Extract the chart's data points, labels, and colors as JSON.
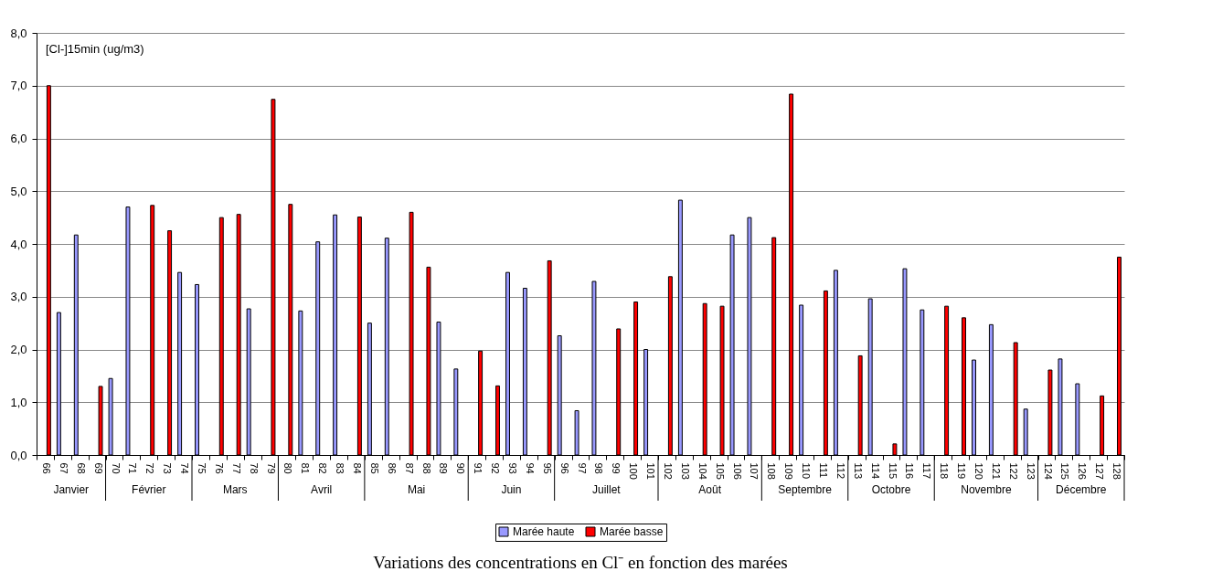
{
  "chart_data": {
    "type": "bar",
    "title": "Variations des concentrations en Cl⁻ en fonction des marées",
    "ylabel": "[Cl-]15min (ug/m3)",
    "categories": [
      "66",
      "67",
      "68",
      "69",
      "70",
      "71",
      "72",
      "73",
      "74",
      "75",
      "76",
      "77",
      "78",
      "79",
      "80",
      "81",
      "82",
      "83",
      "84",
      "85",
      "86",
      "87",
      "88",
      "89",
      "90",
      "91",
      "92",
      "93",
      "94",
      "95",
      "96",
      "97",
      "98",
      "99",
      "100",
      "101",
      "102",
      "103",
      "104",
      "105",
      "106",
      "107",
      "108",
      "109",
      "110",
      "111",
      "112",
      "113",
      "114",
      "115",
      "116",
      "117",
      "118",
      "119",
      "120",
      "121",
      "122",
      "123",
      "124",
      "125",
      "126",
      "127",
      "128"
    ],
    "series": [
      {
        "name": "Marée haute",
        "color": "#9999ff",
        "values": [
          null,
          2.7,
          4.17,
          null,
          1.45,
          4.7,
          null,
          null,
          3.46,
          3.23,
          null,
          null,
          2.77,
          null,
          null,
          2.73,
          4.04,
          4.55,
          null,
          2.5,
          4.11,
          null,
          null,
          2.52,
          1.63,
          null,
          null,
          3.46,
          3.16,
          null,
          2.26,
          0.84,
          3.29,
          null,
          null,
          2.0,
          null,
          4.83,
          null,
          null,
          4.17,
          4.5,
          null,
          null,
          2.84,
          null,
          3.5,
          null,
          2.96,
          null,
          3.53,
          2.75,
          null,
          null,
          1.8,
          2.47,
          null,
          0.87,
          null,
          1.82,
          1.35,
          null,
          null
        ]
      },
      {
        "name": "Marée basse",
        "color": "#ff0000",
        "values": [
          7.0,
          null,
          null,
          1.3,
          null,
          null,
          4.73,
          4.25,
          null,
          null,
          4.5,
          4.56,
          null,
          6.74,
          4.75,
          null,
          null,
          null,
          4.51,
          null,
          null,
          4.6,
          3.56,
          null,
          null,
          1.97,
          1.31,
          null,
          null,
          3.68,
          null,
          null,
          null,
          2.39,
          2.9,
          null,
          3.38,
          null,
          2.87,
          2.82,
          null,
          null,
          4.12,
          6.84,
          null,
          3.11,
          null,
          1.88,
          null,
          0.21,
          null,
          null,
          2.82,
          2.6,
          null,
          null,
          2.13,
          null,
          1.61,
          null,
          null,
          1.12,
          3.75
        ]
      }
    ],
    "ylim": [
      0,
      8
    ],
    "yticks": [
      {
        "value": 0,
        "label": "0,0"
      },
      {
        "value": 1,
        "label": "1,0"
      },
      {
        "value": 2,
        "label": "2,0"
      },
      {
        "value": 3,
        "label": "3,0"
      },
      {
        "value": 4,
        "label": "4,0"
      },
      {
        "value": 5,
        "label": "5,0"
      },
      {
        "value": 6,
        "label": "6,0"
      },
      {
        "value": 7,
        "label": "7,0"
      },
      {
        "value": 8,
        "label": "8,0"
      }
    ],
    "grid": "y",
    "legend": "bottom",
    "annotations": [
      "Janvier",
      "Février",
      "Mars",
      "Avril",
      "Mai",
      "Juin",
      "Juillet",
      "Août",
      "Septembre",
      "Octobre",
      "Novembre",
      "Décembre"
    ]
  }
}
